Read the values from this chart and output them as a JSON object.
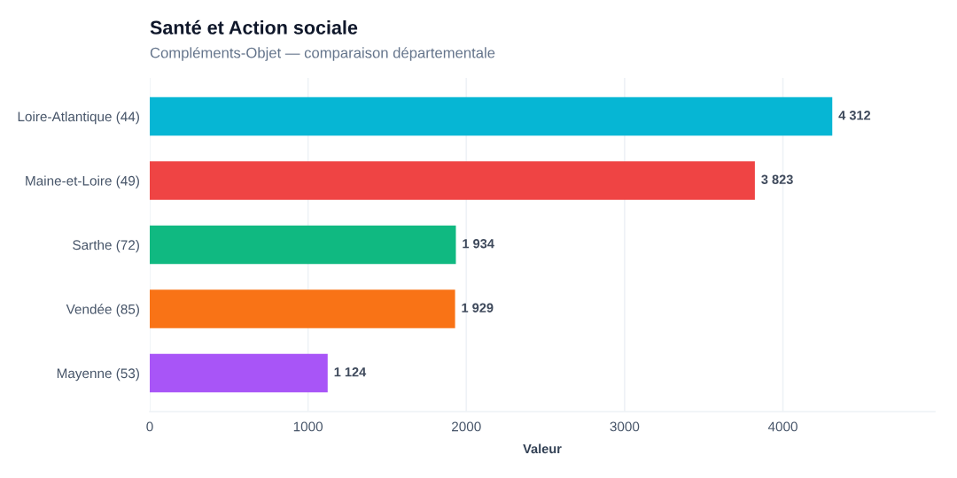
{
  "chart_data": {
    "type": "bar",
    "orientation": "horizontal",
    "title": "Santé et Action sociale",
    "subtitle": "Compléments-Objet — comparaison départementale",
    "xlabel": "Valeur",
    "categories": [
      "Loire-Atlantique (44)",
      "Maine-et-Loire (49)",
      "Sarthe (72)",
      "Vendée (85)",
      "Mayenne (53)"
    ],
    "values": [
      4312,
      3823,
      1934,
      1929,
      1124
    ],
    "colors": [
      "#06b6d4",
      "#ef4444",
      "#10b981",
      "#f97316",
      "#a855f7"
    ],
    "value_labels": [
      "4 312",
      "3 823",
      "1 934",
      "1 929",
      "1 124"
    ],
    "xlim": [
      0,
      4960
    ],
    "xticks": [
      0,
      1000,
      2000,
      3000,
      4000
    ],
    "grid": "x"
  }
}
